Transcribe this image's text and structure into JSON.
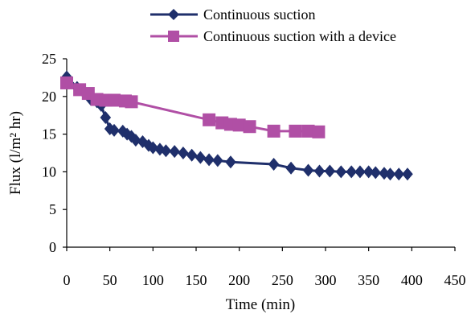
{
  "chart_data": {
    "type": "line",
    "title": "",
    "xlabel": "Time (min)",
    "ylabel": "Flux (l/m² hr)",
    "xlim": [
      0,
      450
    ],
    "ylim": [
      0,
      25
    ],
    "x_ticks": [
      "0",
      "50",
      "100",
      "150",
      "200",
      "250",
      "300",
      "350",
      "400",
      "450"
    ],
    "y_ticks": [
      "0",
      "5",
      "10",
      "15",
      "20",
      "25"
    ],
    "grid": false,
    "legend_position": "top",
    "series": [
      {
        "name": "Continuous suction",
        "color": "#1f2f6b",
        "marker": "diamond",
        "points": [
          [
            0,
            22.6
          ],
          [
            12,
            21.2
          ],
          [
            18,
            20.8
          ],
          [
            28,
            19.6
          ],
          [
            35,
            19.3
          ],
          [
            40,
            18.8
          ],
          [
            45,
            17.2
          ],
          [
            50,
            15.7
          ],
          [
            55,
            15.5
          ],
          [
            65,
            15.4
          ],
          [
            70,
            15.0
          ],
          [
            75,
            14.7
          ],
          [
            80,
            14.2
          ],
          [
            88,
            14.0
          ],
          [
            95,
            13.5
          ],
          [
            100,
            13.2
          ],
          [
            108,
            13.0
          ],
          [
            115,
            12.8
          ],
          [
            125,
            12.7
          ],
          [
            135,
            12.5
          ],
          [
            145,
            12.2
          ],
          [
            155,
            11.9
          ],
          [
            165,
            11.6
          ],
          [
            175,
            11.5
          ],
          [
            190,
            11.3
          ],
          [
            240,
            11.0
          ],
          [
            260,
            10.5
          ],
          [
            280,
            10.2
          ],
          [
            293,
            10.1
          ],
          [
            305,
            10.1
          ],
          [
            318,
            10.0
          ],
          [
            330,
            10.0
          ],
          [
            340,
            10.0
          ],
          [
            350,
            10.0
          ],
          [
            358,
            9.9
          ],
          [
            368,
            9.8
          ],
          [
            375,
            9.7
          ],
          [
            385,
            9.7
          ],
          [
            395,
            9.7
          ]
        ]
      },
      {
        "name": "Continuous suction with a device",
        "color": "#b04fa5",
        "marker": "square",
        "points": [
          [
            0,
            21.8
          ],
          [
            15,
            20.9
          ],
          [
            25,
            20.4
          ],
          [
            35,
            19.6
          ],
          [
            45,
            19.5
          ],
          [
            55,
            19.5
          ],
          [
            68,
            19.4
          ],
          [
            75,
            19.3
          ],
          [
            165,
            16.9
          ],
          [
            180,
            16.5
          ],
          [
            190,
            16.3
          ],
          [
            200,
            16.2
          ],
          [
            212,
            16.0
          ],
          [
            240,
            15.4
          ],
          [
            265,
            15.4
          ],
          [
            280,
            15.4
          ],
          [
            292,
            15.3
          ]
        ]
      }
    ]
  }
}
